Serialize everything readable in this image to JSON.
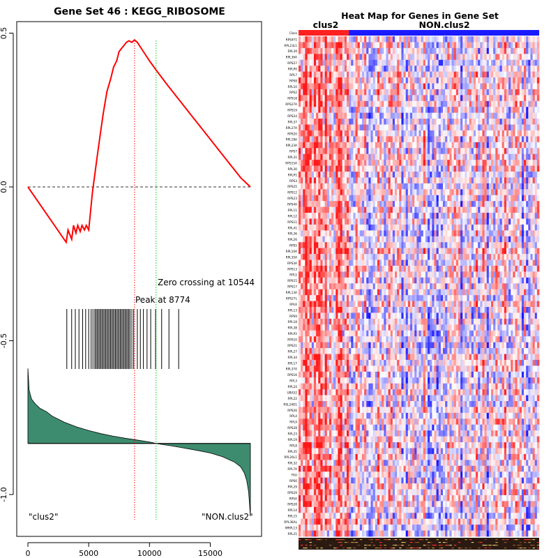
{
  "left_panel": {
    "title": "Gene Set  46 : KEGG_RIBOSOME",
    "peak_label": "Peak at 8774",
    "zero_crossing_label": "Zero crossing at 10544",
    "class_left_label": "\"clus2\"",
    "class_right_label": "\"NON.clus2\"",
    "colors": {
      "es_line": "#ff0000",
      "peak_line": "#ff0000",
      "zero_line": "#00cc00",
      "ranked_area": "#3d8c6f"
    }
  },
  "right_panel": {
    "title": "Heat Map for Genes in Gene Set",
    "class_row_label": "Class",
    "class_label_left": "clus2",
    "class_label_right": "NON.clus2",
    "colors": {
      "class_left": "#ff2020",
      "class_right": "#1a1aff"
    },
    "genes": [
      "RPS4Y1",
      "RPL23L1",
      "RPL39",
      "RPL36A",
      "RPS27",
      "RPLP0",
      "RPL7",
      "RPS8",
      "RPL10",
      "RPS2",
      "RPS18",
      "RPS27A",
      "RPS19",
      "RPS24",
      "RPL37",
      "RPL27A",
      "RPS20",
      "RPL18A",
      "RPL23A",
      "RPS7",
      "RPL31",
      "RPS15A",
      "RPL30",
      "RPLP1",
      "RPS3",
      "RPS25",
      "RPS12",
      "RPS23",
      "RPS4X",
      "RPL11",
      "RPL12",
      "RPS11",
      "RPL41",
      "RPL36",
      "RPL26",
      "RPS5",
      "RPL10A",
      "RPL35A",
      "RPS3A",
      "RPS13",
      "RPL5",
      "RPS15",
      "RPS17",
      "RPL13A",
      "RPS27L",
      "RPL6",
      "RPL13",
      "RPS9",
      "RPL18",
      "RPL38",
      "RPLP2",
      "RPS10",
      "RPS21",
      "RPL27",
      "RPL34",
      "RPL17",
      "RPL37A",
      "RPS16",
      "RPL3",
      "RPL24",
      "UBA52",
      "RPL22",
      "RSL24D1",
      "RPS26",
      "RPL4",
      "RPL9",
      "RPS28",
      "RPL23",
      "RPL19",
      "RPL8",
      "RPL35",
      "RPL26L1",
      "RPL32",
      "RPL7A",
      "FAU",
      "RPS6",
      "RPL29",
      "RPS29",
      "RPSA",
      "RPS28",
      "RPL14",
      "RPL15",
      "RPL36AL",
      "MRPL13",
      "RPL21"
    ]
  },
  "chart_data": [
    {
      "type": "line",
      "title": "Gene Set  46 : KEGG_RIBOSOME",
      "xlim": [
        0,
        18500
      ],
      "ylim": [
        -1.1,
        0.53
      ],
      "xticks": [
        0,
        5000,
        10000,
        15000
      ],
      "yticks": [
        -1.0,
        -0.5,
        0.0,
        0.5
      ],
      "xtick_labels": [
        "0",
        "5000",
        "10000",
        "15000"
      ],
      "ytick_labels": [
        "-1.0",
        "-0.5",
        "0.0",
        "0.5"
      ],
      "running_enrichment_score": {
        "x": [
          0,
          3150,
          3300,
          3600,
          3750,
          3950,
          4100,
          4300,
          4450,
          4650,
          4800,
          5000,
          5150,
          5300,
          5500,
          5700,
          5950,
          6200,
          6500,
          6800,
          7050,
          7300,
          7500,
          7700,
          7900,
          8100,
          8300,
          8550,
          8774,
          9000,
          9500,
          10000,
          10544,
          11500,
          12500,
          13500,
          14500,
          15500,
          16500,
          17500,
          18300
        ],
        "y": [
          0.0,
          -0.18,
          -0.14,
          -0.17,
          -0.125,
          -0.15,
          -0.125,
          -0.145,
          -0.125,
          -0.14,
          -0.125,
          -0.14,
          -0.08,
          -0.02,
          0.04,
          0.1,
          0.17,
          0.24,
          0.31,
          0.35,
          0.39,
          0.41,
          0.44,
          0.45,
          0.46,
          0.47,
          0.475,
          0.47,
          0.478,
          0.47,
          0.44,
          0.41,
          0.38,
          0.33,
          0.28,
          0.23,
          0.18,
          0.13,
          0.08,
          0.03,
          0.0
        ]
      },
      "hit_positions": [
        3200,
        3600,
        3900,
        4200,
        4500,
        4750,
        5000,
        5200,
        5350,
        5500,
        5600,
        5700,
        5800,
        5900,
        6000,
        6100,
        6200,
        6300,
        6400,
        6500,
        6600,
        6700,
        6800,
        6900,
        7000,
        7100,
        7200,
        7300,
        7400,
        7500,
        7600,
        7700,
        7800,
        7900,
        8000,
        8100,
        8200,
        8300,
        8400,
        8550,
        8700,
        9000,
        9250,
        9500,
        9800,
        10100,
        10500,
        11000,
        11600,
        12400
      ],
      "ranked_metric": {
        "x": [
          0,
          100,
          300,
          600,
          1000,
          1500,
          2000,
          3000,
          4000,
          5000,
          6000,
          7000,
          8000,
          9000,
          10000,
          10544,
          11000,
          12000,
          13000,
          14000,
          15000,
          16000,
          17000,
          17500,
          17800,
          18000,
          18150,
          18300
        ],
        "y": [
          -0.59,
          -0.66,
          -0.69,
          -0.705,
          -0.72,
          -0.73,
          -0.745,
          -0.765,
          -0.78,
          -0.792,
          -0.802,
          -0.81,
          -0.817,
          -0.823,
          -0.829,
          -0.834,
          -0.837,
          -0.843,
          -0.85,
          -0.857,
          -0.865,
          -0.877,
          -0.895,
          -0.91,
          -0.93,
          -0.955,
          -0.99,
          -1.07
        ],
        "baseline": -0.834
      },
      "peak_x": 8774,
      "zero_crossing_x": 10544
    },
    {
      "type": "heatmap",
      "title": "Heat Map for Genes in Gene Set",
      "columns_left_class": "clus2",
      "columns_right_class": "NON.clus2",
      "n_rows": 85,
      "n_columns": 110,
      "n_left_columns": 23,
      "color_scale": [
        "#1a1aff",
        "#ffffff",
        "#ff1a1a"
      ]
    }
  ]
}
